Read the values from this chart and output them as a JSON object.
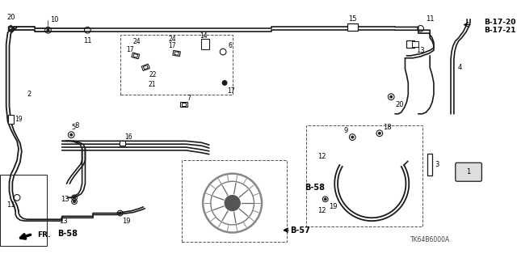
{
  "bg_color": "#ffffff",
  "diagram_code": "TK64B6000A",
  "lc": "#1a1a1a",
  "figsize": [
    6.4,
    3.19
  ],
  "dpi": 100,
  "labels": {
    "B_58_left": "B-58",
    "B_58_right": "B-58",
    "B_57": "B-57",
    "B_17_20": "B-17-20",
    "B_17_21": "B-17-21",
    "FR": "FR."
  }
}
